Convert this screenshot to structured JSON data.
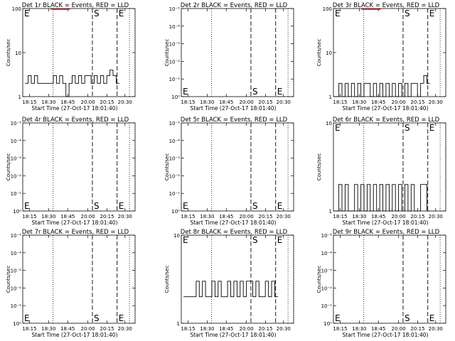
{
  "figure": {
    "common_xlabel": "Start Time (27-Oct-17 18:01:40)",
    "x_tick_labels": [
      "18:15",
      "18:30",
      "18:45",
      "20:00",
      "20:15",
      "20:30"
    ],
    "y_axis_label": "Counts/sec",
    "marker_labels": {
      "start": "S",
      "end": "E"
    },
    "colors": {
      "events": "#000000",
      "lld": "#ff0000"
    }
  },
  "chart_data": [
    {
      "type": "line",
      "title": "Det 1r BLACK = Events, RED = LLD",
      "ylabel": "Counts/sec",
      "yscale": "log",
      "ytick_labels": [
        "1",
        "10",
        "100"
      ],
      "series": [
        {
          "values": [
            2,
            3,
            2,
            3,
            2,
            2,
            2,
            2,
            2,
            3,
            2,
            3,
            2,
            1,
            2,
            3,
            2,
            3,
            2,
            3,
            3,
            2,
            3,
            2,
            3,
            2,
            3,
            4,
            3,
            2
          ]
        },
        {
          "values": [
            100,
            100,
            100
          ]
        }
      ]
    },
    {
      "type": "line",
      "title": "Det 2r BLACK = Events, RED = LLD",
      "ylabel": "Counts/sec",
      "yscale": "log",
      "ytick_labels": [
        "10⁰",
        "10⁻¹",
        "10⁻²",
        "10⁻³",
        "10⁻⁴",
        "10⁻⁵"
      ],
      "series": []
    },
    {
      "type": "line",
      "title": "Det 3r BLACK = Events, RED = LLD",
      "ylabel": "Counts/sec",
      "yscale": "log",
      "ytick_labels": [
        "1",
        "10",
        "100"
      ],
      "series": [
        {
          "values": [
            1,
            2,
            1,
            2,
            1,
            2,
            1,
            2,
            1,
            2,
            2,
            1,
            2,
            1,
            2,
            1,
            2,
            1,
            2,
            1,
            2,
            1,
            2,
            1,
            2,
            2,
            1,
            2,
            3,
            2
          ]
        },
        {
          "values": [
            100,
            100,
            100
          ]
        }
      ]
    },
    {
      "type": "line",
      "title": "Det 4r BLACK = Events, RED = LLD",
      "ylabel": "Counts/sec",
      "yscale": "log",
      "ytick_labels": [
        "10⁰",
        "10⁻¹",
        "10⁻²",
        "10⁻³",
        "10⁻⁴",
        "10⁻⁵"
      ],
      "series": []
    },
    {
      "type": "line",
      "title": "Det 5r BLACK = Events, RED = LLD",
      "ylabel": "Counts/sec",
      "yscale": "log",
      "ytick_labels": [
        "10⁰",
        "10⁻¹",
        "10⁻²",
        "10⁻³",
        "10⁻⁴",
        "10⁻⁵"
      ],
      "series": []
    },
    {
      "type": "line",
      "title": "Det 6r BLACK = Events, RED = LLD",
      "ylabel": "Counts/sec",
      "yscale": "log",
      "ytick_labels": [
        "1",
        "10"
      ],
      "series": [
        {
          "values": [
            1,
            2,
            1,
            2,
            1,
            1,
            2,
            1,
            2,
            1,
            2,
            1,
            2,
            1,
            2,
            1,
            2,
            1,
            2,
            1,
            2,
            1,
            2,
            1,
            2,
            1,
            1,
            2,
            2,
            1
          ]
        }
      ]
    },
    {
      "type": "line",
      "title": "Det 7r BLACK = Events, RED = LLD",
      "ylabel": "Counts/sec",
      "yscale": "log",
      "ytick_labels": [
        "10⁰",
        "10⁻¹",
        "10⁻²",
        "10⁻³",
        "10⁻⁴",
        "10⁻⁵"
      ],
      "series": []
    },
    {
      "type": "line",
      "title": "Det 8r BLACK = Events, RED = LLD",
      "ylabel": "Counts/sec",
      "yscale": "log",
      "ytick_labels": [
        "1",
        "10"
      ],
      "series": [
        {
          "values": [
            2,
            2,
            2,
            2,
            3,
            2,
            3,
            2,
            2,
            3,
            2,
            3,
            2,
            2,
            3,
            2,
            3,
            2,
            3,
            2,
            3,
            3,
            2,
            3,
            2,
            2,
            3,
            2,
            3,
            2
          ]
        }
      ]
    },
    {
      "type": "line",
      "title": "Det 9r BLACK = Events, RED = LLD",
      "ylabel": "Counts/sec",
      "yscale": "log",
      "ytick_labels": [
        "10⁰",
        "10⁻¹",
        "10⁻²",
        "10⁻³",
        "10⁻⁴",
        "10⁻⁵"
      ],
      "series": []
    }
  ]
}
